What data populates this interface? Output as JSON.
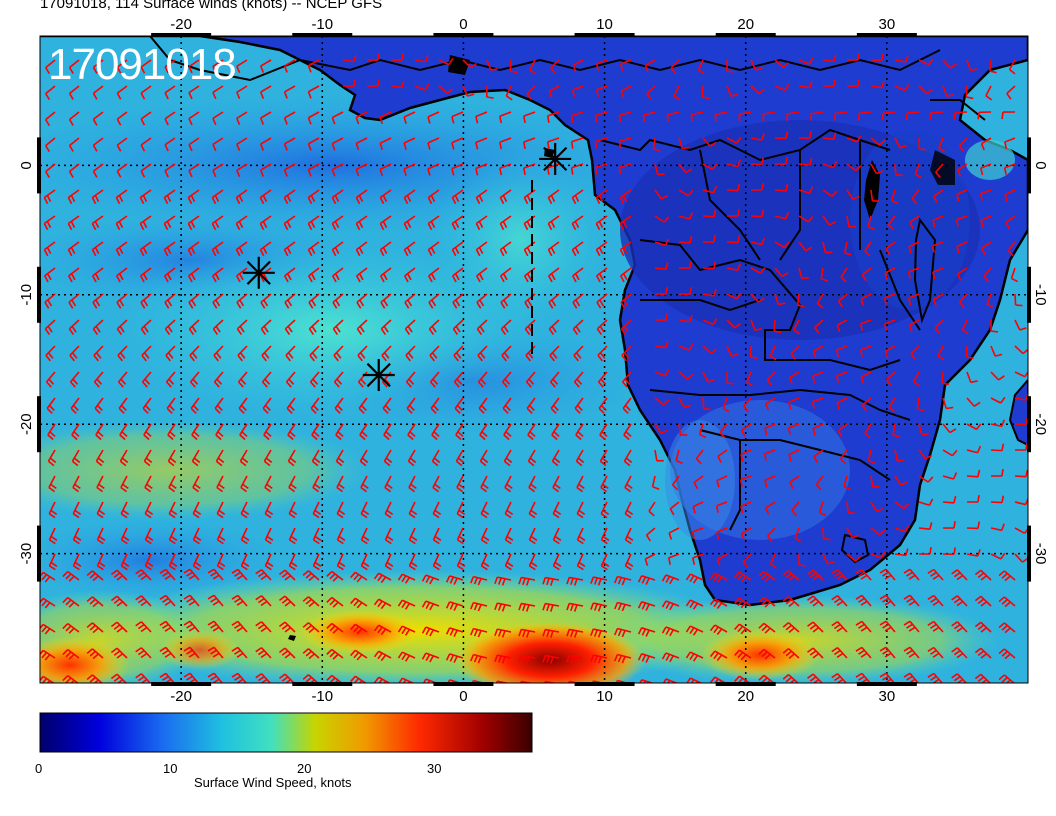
{
  "title": "17091018, 114 Surface winds (knots) -- NCEP GFS",
  "stamp": "17091018",
  "map": {
    "lon_range": [
      -30,
      40
    ],
    "lat_range": [
      -40,
      10
    ],
    "top_ticks": [
      "-20",
      "-10",
      "0",
      "10",
      "20",
      "30"
    ],
    "bottom_ticks": [
      "-20",
      "-10",
      "0",
      "10",
      "20",
      "30"
    ],
    "left_ticks": [
      "0",
      "-10",
      "-20",
      "-30"
    ],
    "right_ticks": [
      "0",
      "-10",
      "-20",
      "-30"
    ],
    "grid": "dotted 10-degree",
    "storm_markers": [
      {
        "lon": 6.5,
        "lat": 0.5
      },
      {
        "lon": -14.5,
        "lat": -8.3
      },
      {
        "lon": -6.0,
        "lat": -16.2
      }
    ],
    "wind_barb_color": "#ff0000",
    "land_color": "#2233cc",
    "ocean_color": "#22bbdd"
  },
  "colorbar": {
    "title": "Surface Wind Speed, knots",
    "range": [
      0,
      36
    ],
    "ticks": [
      "0",
      "10",
      "20",
      "30"
    ],
    "colors": [
      "#00008b",
      "#0000ff",
      "#1e90ff",
      "#00cccc",
      "#40e0d0",
      "#cccc00",
      "#ff8c00",
      "#ff0000",
      "#8b0000",
      "#3a0000"
    ]
  }
}
